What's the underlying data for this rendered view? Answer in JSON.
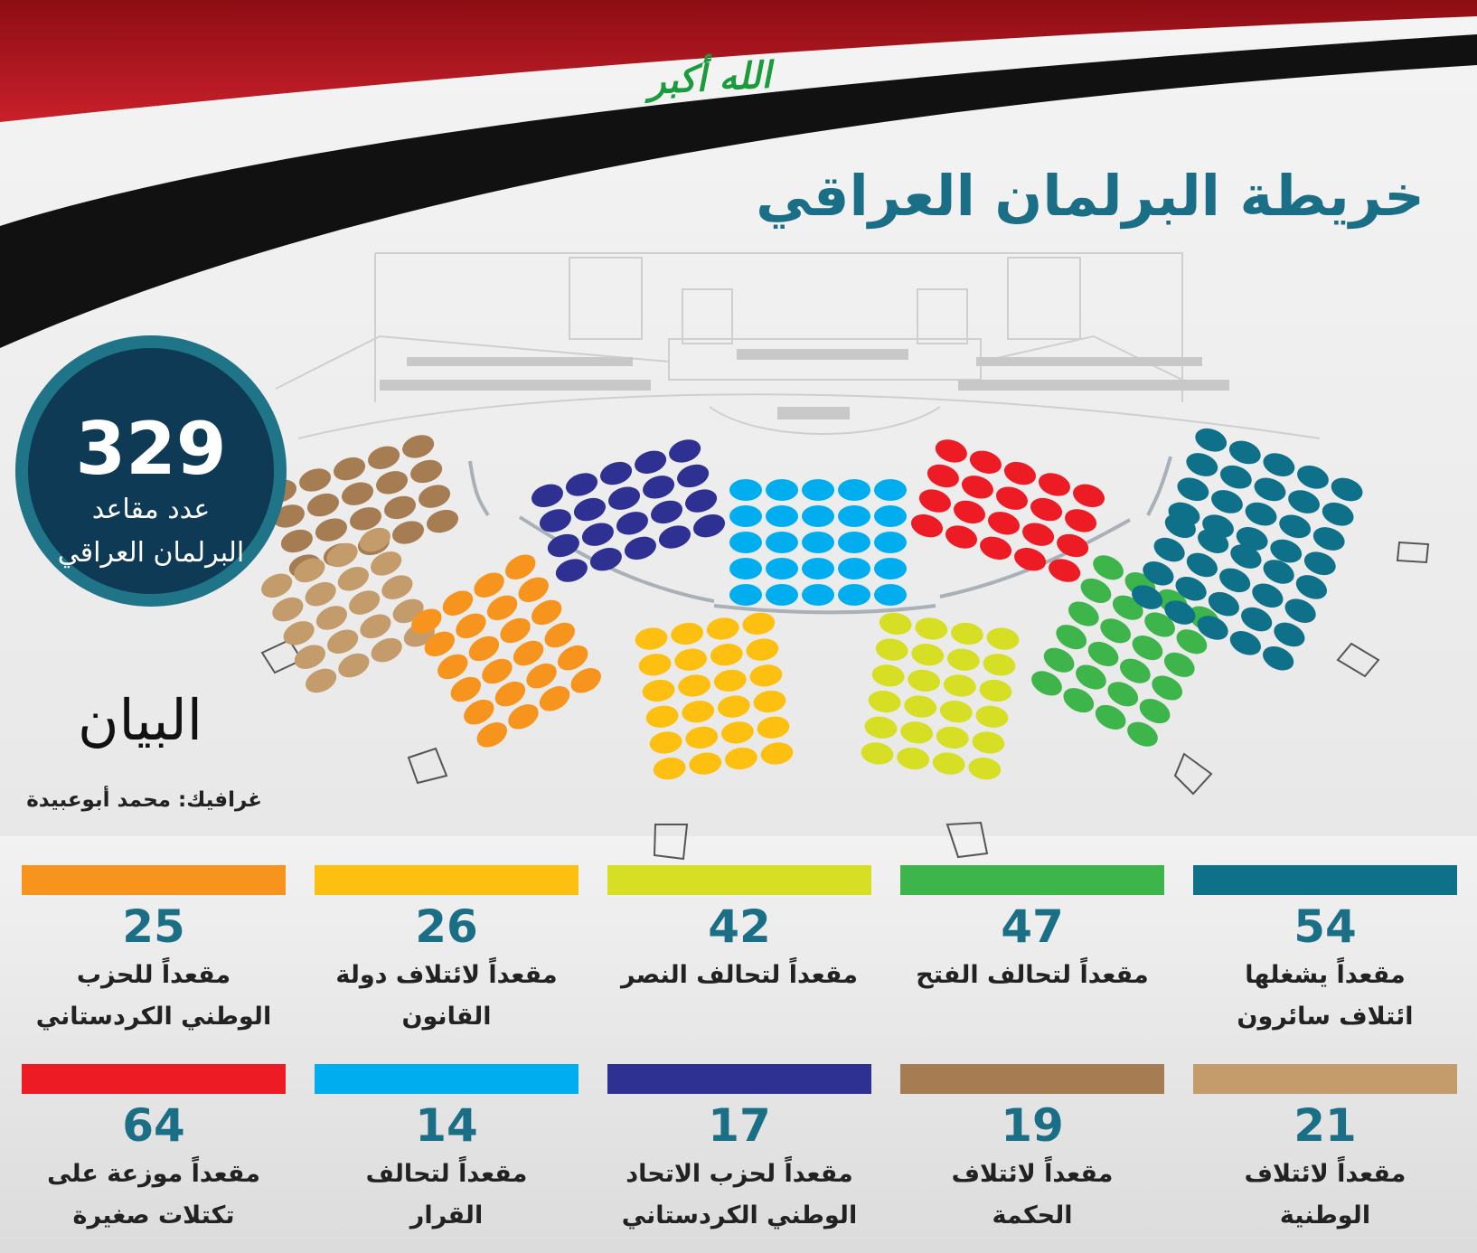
{
  "header": {
    "flag_text": "الله أكبر",
    "title": "خريطة البرلمان العراقي"
  },
  "total": {
    "value": 329,
    "label": "عدد مقاعد البرلمان العراقي"
  },
  "logo": "البيان",
  "credit": "غرافيك: محمد أبوعبيدة",
  "parties": [
    {
      "seats": 54,
      "label": "مقعداً يشغلها ائتلاف سائرون",
      "color": "#0e7189"
    },
    {
      "seats": 47,
      "label": "مقعداً لتحالف الفتح",
      "color": "#3db54a"
    },
    {
      "seats": 42,
      "label": "مقعداً لتحالف النصر",
      "color": "#d6df23"
    },
    {
      "seats": 26,
      "label": "مقعداً لائتلاف دولة القانون",
      "color": "#fdc010"
    },
    {
      "seats": 25,
      "label": "مقعداً للحزب الوطني الكردستاني",
      "color": "#f7941d"
    },
    {
      "seats": 21,
      "label": "مقعداً لائتلاف الوطنية",
      "color": "#c49c6c"
    },
    {
      "seats": 19,
      "label": "مقعداً لائتلاف الحكمة",
      "color": "#a67c52"
    },
    {
      "seats": 17,
      "label": "مقعداً لحزب الاتحاد الوطني الكردستاني",
      "color": "#2e3192"
    },
    {
      "seats": 14,
      "label": "مقعداً لتحالف القرار",
      "color": "#00aeef"
    },
    {
      "seats": 64,
      "label": "مقعداً موزعة على تكتلات صغيرة",
      "color": "#ed1c24"
    }
  ]
}
